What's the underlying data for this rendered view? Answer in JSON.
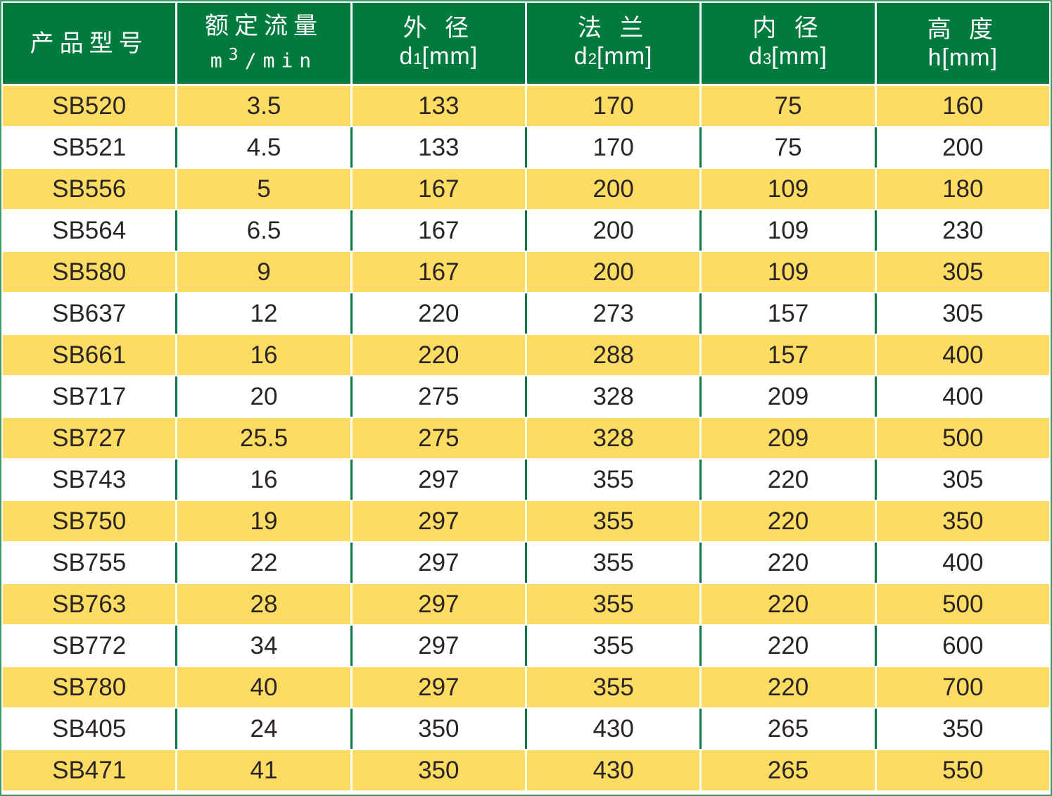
{
  "colors": {
    "header": "#007a3d",
    "band": "#fddc63",
    "text": "#2b2424"
  },
  "headers": [
    {
      "title": "产品型号",
      "unit": ""
    },
    {
      "title": "额定流量",
      "unit": "m3/min"
    },
    {
      "title": "外 径",
      "unit_main": "d",
      "unit_sub": "1",
      "unit_tail": "[mm]"
    },
    {
      "title": "法 兰",
      "unit_main": "d",
      "unit_sub": "2",
      "unit_tail": "[mm]"
    },
    {
      "title": "内 径",
      "unit_main": "d",
      "unit_sub": "3",
      "unit_tail": "[mm]"
    },
    {
      "title": "高 度",
      "unit_main": "h",
      "unit_sub": "",
      "unit_tail": "[mm]"
    }
  ],
  "flow_unit": {
    "m": "m",
    "exp": "3",
    "rest": "/min"
  },
  "rows": [
    [
      "SB520",
      "3.5",
      "133",
      "170",
      "75",
      "160"
    ],
    [
      "SB521",
      "4.5",
      "133",
      "170",
      "75",
      "200"
    ],
    [
      "SB556",
      "5",
      "167",
      "200",
      "109",
      "180"
    ],
    [
      "SB564",
      "6.5",
      "167",
      "200",
      "109",
      "230"
    ],
    [
      "SB580",
      "9",
      "167",
      "200",
      "109",
      "305"
    ],
    [
      "SB637",
      "12",
      "220",
      "273",
      "157",
      "305"
    ],
    [
      "SB661",
      "16",
      "220",
      "288",
      "157",
      "400"
    ],
    [
      "SB717",
      "20",
      "275",
      "328",
      "209",
      "400"
    ],
    [
      "SB727",
      "25.5",
      "275",
      "328",
      "209",
      "500"
    ],
    [
      "SB743",
      "16",
      "297",
      "355",
      "220",
      "305"
    ],
    [
      "SB750",
      "19",
      "297",
      "355",
      "220",
      "350"
    ],
    [
      "SB755",
      "22",
      "297",
      "355",
      "220",
      "400"
    ],
    [
      "SB763",
      "28",
      "297",
      "355",
      "220",
      "500"
    ],
    [
      "SB772",
      "34",
      "297",
      "355",
      "220",
      "600"
    ],
    [
      "SB780",
      "40",
      "297",
      "355",
      "220",
      "700"
    ],
    [
      "SB405",
      "24",
      "350",
      "430",
      "265",
      "350"
    ],
    [
      "SB471",
      "41",
      "350",
      "430",
      "265",
      "550"
    ]
  ]
}
